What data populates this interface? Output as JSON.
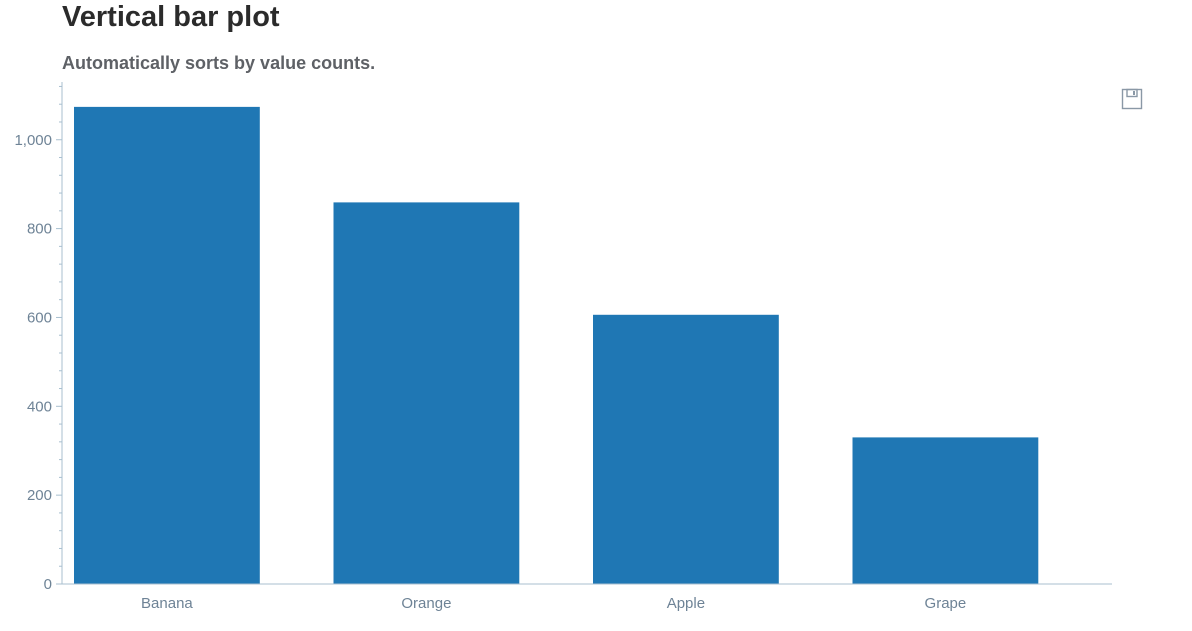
{
  "page": {
    "title": "Vertical bar plot",
    "subtitle": "Automatically sorts by value counts."
  },
  "toolbar": {
    "save_icon": "save-icon"
  },
  "colors": {
    "bar": "#1f77b4",
    "axis": "#a8bfcf",
    "tick_text": "#6e8396"
  },
  "chart_data": {
    "type": "bar",
    "categories": [
      "Banana",
      "Orange",
      "Apple",
      "Grape"
    ],
    "values": [
      1074,
      859,
      606,
      330
    ],
    "title": "Vertical bar plot",
    "subtitle": "Automatically sorts by value counts.",
    "xlabel": "",
    "ylabel": "",
    "ylim": [
      0,
      1130
    ],
    "yticks": [
      0,
      200,
      400,
      600,
      800,
      1000
    ],
    "ytick_labels": [
      "0",
      "200",
      "400",
      "600",
      "800",
      "1,000"
    ],
    "grid": false,
    "legend": "none"
  }
}
